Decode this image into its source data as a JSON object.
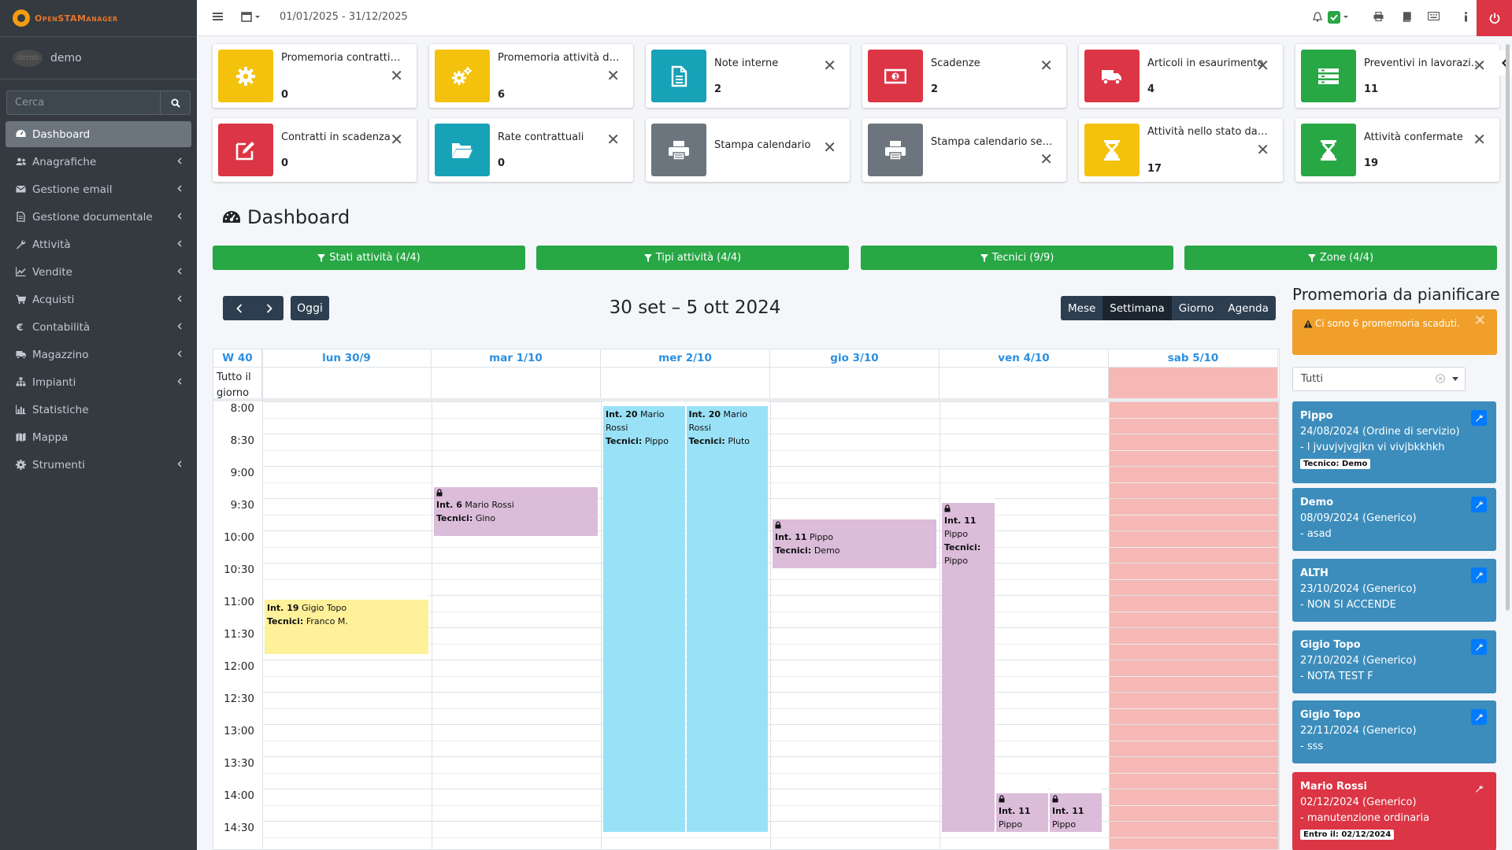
{
  "brand": {
    "logo_text": "OpenSTAManager"
  },
  "user": {
    "avatar_text": "demo",
    "name": "demo"
  },
  "search": {
    "placeholder": "Cerca"
  },
  "sidebar": {
    "items": [
      {
        "label": "Dashboard",
        "icon": "dashboard-icon"
      },
      {
        "label": "Anagrafiche",
        "icon": "users-icon"
      },
      {
        "label": "Gestione email",
        "icon": "envelope-icon"
      },
      {
        "label": "Gestione documentale",
        "icon": "file-icon"
      },
      {
        "label": "Attività",
        "icon": "wrench-icon"
      },
      {
        "label": "Vendite",
        "icon": "line-chart-icon"
      },
      {
        "label": "Acquisti",
        "icon": "cart-icon"
      },
      {
        "label": "Contabilità",
        "icon": "euro-icon"
      },
      {
        "label": "Magazzino",
        "icon": "truck-icon"
      },
      {
        "label": "Impianti",
        "icon": "sitemap-icon"
      },
      {
        "label": "Statistiche",
        "icon": "bar-chart-icon"
      },
      {
        "label": "Mappa",
        "icon": "map-icon"
      },
      {
        "label": "Strumenti",
        "icon": "cog-icon"
      }
    ]
  },
  "topbar": {
    "date_range": "01/01/2025 - 31/12/2025"
  },
  "widgets": [
    {
      "title": "Promemoria contratti da pianificare",
      "value": "0",
      "color": "#f4c20d",
      "icon": "gear-icon"
    },
    {
      "title": "Promemoria attività da pianificare",
      "value": "6",
      "color": "#f4c20d",
      "icon": "gears-icon"
    },
    {
      "title": "Note interne",
      "value": "2",
      "color": "#17a2b8",
      "icon": "document-icon"
    },
    {
      "title": "Scadenze",
      "value": "2",
      "color": "#dc3545",
      "icon": "money-icon"
    },
    {
      "title": "Articoli in esaurimento",
      "value": "4",
      "color": "#dc3545",
      "icon": "truck-icon"
    },
    {
      "title": "Preventivi in lavorazione",
      "value": "11",
      "color": "#28a745",
      "icon": "list-icon"
    },
    {
      "title": "Contratti in scadenza",
      "value": "0",
      "color": "#dc3545",
      "icon": "edit-icon"
    },
    {
      "title": "Rate contrattuali",
      "value": "0",
      "color": "#17a2b8",
      "icon": "folder-icon"
    },
    {
      "title": "Stampa calendario",
      "value": "",
      "color": "#6c757d",
      "icon": "printer-icon"
    },
    {
      "title": "Stampa calendario settimanale",
      "value": "",
      "color": "#6c757d",
      "icon": "printer-icon"
    },
    {
      "title": "Attività nello stato da programmare",
      "value": "17",
      "color": "#f4c20d",
      "icon": "hourglass-icon"
    },
    {
      "title": "Attività confermate",
      "value": "19",
      "color": "#28a745",
      "icon": "hourglass-icon"
    }
  ],
  "page": {
    "title": "Dashboard"
  },
  "filters": [
    {
      "label": "Stati attività (4/4)"
    },
    {
      "label": "Tipi attività (4/4)"
    },
    {
      "label": "Tecnici (9/9)"
    },
    {
      "label": "Zone (4/4)"
    }
  ],
  "calendar": {
    "prev_label": "‹",
    "next_label": "›",
    "today_label": "Oggi",
    "title": "30 set – 5 ott 2024",
    "views": [
      "Mese",
      "Settimana",
      "Giorno",
      "Agenda"
    ],
    "active_view": "Settimana",
    "week_label": "W 40",
    "allday_label": "Tutto il giorno",
    "days": [
      "lun 30/9",
      "mar 1/10",
      "mer 2/10",
      "gio 3/10",
      "ven 4/10",
      "sab 5/10"
    ],
    "times": [
      "8:00",
      "8:30",
      "9:00",
      "9:30",
      "10:00",
      "10:30",
      "11:00",
      "11:30",
      "12:00",
      "12:30",
      "13:00",
      "13:30",
      "14:00",
      "14:30"
    ],
    "tecnici_label": "Tecnici:",
    "events": [
      {
        "day": 0,
        "start": "11:00",
        "end": "11:55",
        "num": "Int. 19",
        "client": "Gigio Topo",
        "tecnici": "Franco M.",
        "color": "#fff09a",
        "locked": false,
        "sub": 0,
        "subs": 1
      },
      {
        "day": 1,
        "start": "9:15",
        "end": "10:05",
        "num": "Int. 6",
        "client": "Mario Rossi",
        "tecnici": "Gino",
        "color": "#dbbcd9",
        "locked": true,
        "sub": 0,
        "subs": 1
      },
      {
        "day": 2,
        "start": "8:00",
        "end": "14:40",
        "num": "Int. 20",
        "client": "Mario Rossi",
        "tecnici": "Pippo",
        "color": "#99e1f7",
        "locked": false,
        "sub": 0,
        "subs": 2
      },
      {
        "day": 2,
        "start": "8:00",
        "end": "14:40",
        "num": "Int. 20",
        "client": "Mario Rossi",
        "tecnici": "Pluto",
        "color": "#99e1f7",
        "locked": false,
        "sub": 1,
        "subs": 2
      },
      {
        "day": 3,
        "start": "9:45",
        "end": "10:35",
        "num": "Int. 11",
        "client": "Pippo",
        "tecnici": "Demo",
        "color": "#dbbcd9",
        "locked": true,
        "sub": 0,
        "subs": 1
      },
      {
        "day": 4,
        "start": "9:30",
        "end": "14:40",
        "num": "Int. 11",
        "client": "Pippo",
        "tecnici": "Pippo",
        "color": "#dbbcd9",
        "locked": true,
        "sub": 0,
        "subs": 3
      },
      {
        "day": 4,
        "start": "14:00",
        "end": "14:40",
        "num": "Int. 11",
        "client": "Pippo",
        "tecnici": "",
        "color": "#dbbcd9",
        "locked": true,
        "sub": 1,
        "subs": 3
      },
      {
        "day": 4,
        "start": "14:00",
        "end": "14:40",
        "num": "Int. 11",
        "client": "Pippo",
        "tecnici": "",
        "color": "#dbbcd9",
        "locked": true,
        "sub": 2,
        "subs": 3
      }
    ]
  },
  "right_panel": {
    "title": "Promemoria da pianificare",
    "alert": "Ci sono 6 promemoria scaduti.",
    "select_value": "Tutti",
    "cards": [
      {
        "name": "Pippo",
        "date": "24/08/2024 (Ordine di servizio)",
        "desc": "- l jvuvjvjvgjkn vi vivjbkkhkh",
        "tag": "Tecnico: Demo",
        "color": "#3c8dbc"
      },
      {
        "name": "Demo",
        "date": "08/09/2024 (Generico)",
        "desc": "- asad",
        "tag": "",
        "color": "#3c8dbc"
      },
      {
        "name": "ALTH",
        "date": "23/10/2024 (Generico)",
        "desc": "- NON SI ACCENDE",
        "tag": "",
        "color": "#3c8dbc"
      },
      {
        "name": "Gigio Topo",
        "date": "27/10/2024 (Generico)",
        "desc": "- NOTA TEST F",
        "tag": "",
        "color": "#3c8dbc"
      },
      {
        "name": "Gigio Topo",
        "date": "22/11/2024 (Generico)",
        "desc": "- sss",
        "tag": "",
        "color": "#3c8dbc"
      },
      {
        "name": "Mario Rossi",
        "date": "02/12/2024 (Generico)",
        "desc": "- manutenzione ordinaria",
        "tag": "Entro il: 02/12/2024",
        "color": "#dc3545"
      }
    ]
  }
}
